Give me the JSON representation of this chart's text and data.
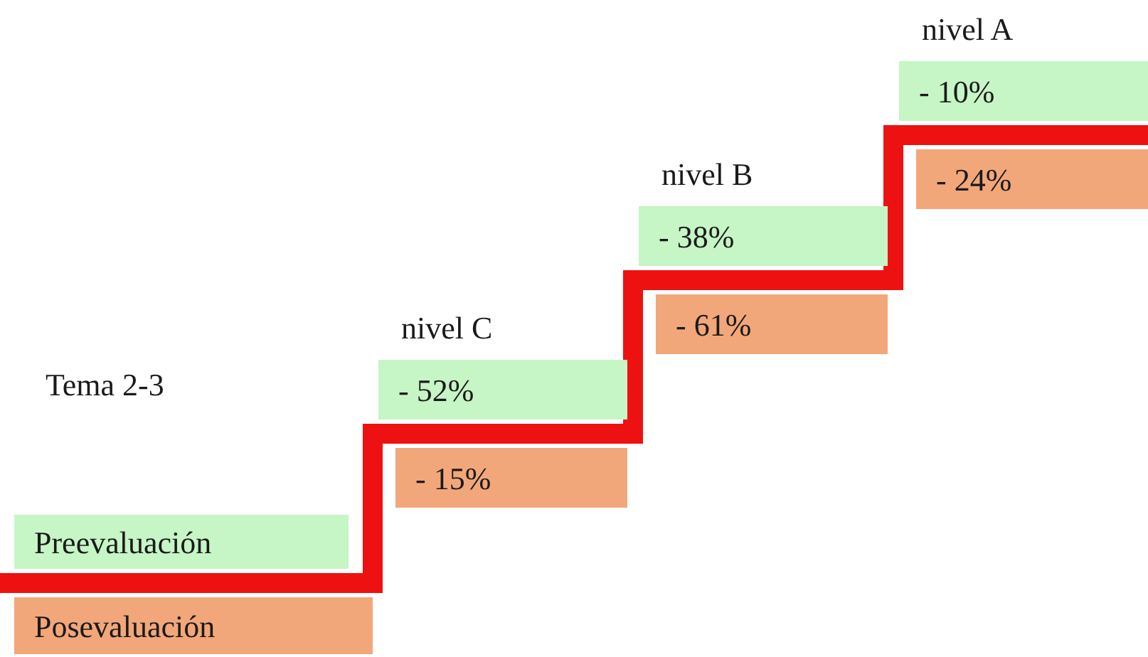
{
  "chart_data": {
    "type": "other",
    "title": "Tema 2-3",
    "categories": [
      "nivel C",
      "nivel B",
      "nivel A"
    ],
    "series": [
      {
        "name": "Preevaluación",
        "color": "#c6f5c6",
        "values": [
          -52,
          -38,
          -10
        ],
        "value_labels": [
          "- 52%",
          "- 38%",
          "- 10%"
        ]
      },
      {
        "name": "Posevaluación",
        "color": "#f2a77a",
        "values": [
          -15,
          -61,
          -24
        ],
        "value_labels": [
          "- 15%",
          "- 61%",
          "- 24%"
        ]
      }
    ]
  }
}
